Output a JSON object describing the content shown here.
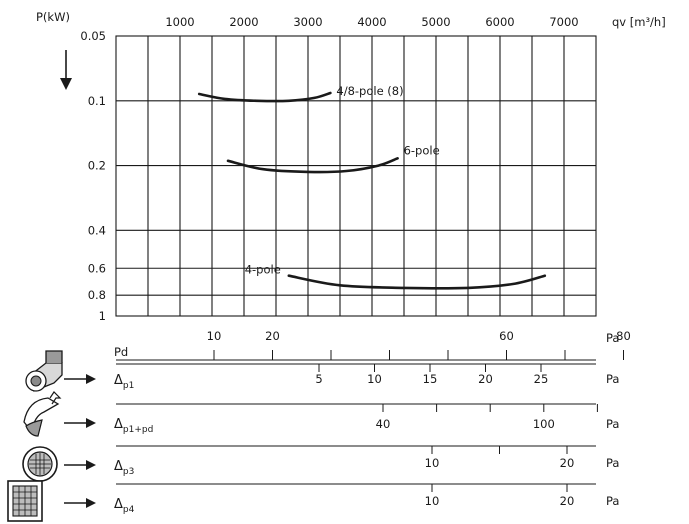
{
  "chart_data": {
    "type": "line",
    "x_axis": {
      "label": "qv [m³/h]",
      "range": [
        0,
        7500
      ],
      "ticks": [
        1000,
        2000,
        3000,
        4000,
        5000,
        6000,
        7000
      ],
      "position": "top"
    },
    "y_axis": {
      "label": "P(kW)",
      "scale": "log",
      "inverted": true,
      "range": [
        0.05,
        1
      ],
      "ticks": [
        {
          "value": 0.05,
          "label": "0.05"
        },
        {
          "value": 0.1,
          "label": "0.1"
        },
        {
          "value": 0.2,
          "label": "0.2"
        },
        {
          "value": 0.4,
          "label": "0.4"
        },
        {
          "value": 0.6,
          "label": "0.6"
        },
        {
          "value": 0.8,
          "label": "0.8"
        },
        {
          "value": 1,
          "label": "1"
        }
      ]
    },
    "grid": true,
    "series": [
      {
        "name": "4/8-pole (8)",
        "x": [
          1300,
          1700,
          2200,
          2700,
          3100,
          3350
        ],
        "y": [
          0.093,
          0.098,
          0.1,
          0.1,
          0.097,
          0.092
        ]
      },
      {
        "name": "6-pole",
        "x": [
          1750,
          2300,
          3000,
          3600,
          4100,
          4400
        ],
        "y": [
          0.19,
          0.208,
          0.214,
          0.212,
          0.2,
          0.185
        ]
      },
      {
        "name": "4-pole",
        "x": [
          2700,
          3500,
          4500,
          5500,
          6200,
          6700
        ],
        "y": [
          0.65,
          0.72,
          0.74,
          0.74,
          0.71,
          0.65
        ]
      }
    ],
    "pressure_scales": [
      {
        "label": "Pd",
        "sub": "",
        "unit": "Pa",
        "ticks_above": true,
        "ticks": [
          {
            "value": 10,
            "label": "10"
          },
          {
            "value": 20,
            "label": "20"
          },
          {
            "value": 30,
            "label": ""
          },
          {
            "value": 40,
            "label": ""
          },
          {
            "value": 50,
            "label": ""
          },
          {
            "value": 60,
            "label": "60"
          },
          {
            "value": 70,
            "label": ""
          },
          {
            "value": 80,
            "label": "80"
          }
        ]
      },
      {
        "label": "Δ",
        "sub": "p1",
        "unit": "Pa",
        "ticks_above": false,
        "ticks": [
          {
            "value": 5,
            "label": "5"
          },
          {
            "value": 10,
            "label": "10"
          },
          {
            "value": 15,
            "label": "15"
          },
          {
            "value": 20,
            "label": "20"
          },
          {
            "value": 25,
            "label": "25"
          }
        ]
      },
      {
        "label": "Δ",
        "sub": "p1+pd",
        "unit": "Pa",
        "ticks_above": false,
        "ticks": [
          {
            "value": 40,
            "label": "40"
          },
          {
            "value": 60,
            "label": ""
          },
          {
            "value": 80,
            "label": ""
          },
          {
            "value": 100,
            "label": "100"
          },
          {
            "value": 120,
            "label": ""
          }
        ]
      },
      {
        "label": "Δ",
        "sub": "p3",
        "unit": "Pa",
        "ticks_above": false,
        "ticks": [
          {
            "value": 10,
            "label": "10"
          },
          {
            "value": 15,
            "label": ""
          },
          {
            "value": 20,
            "label": "20"
          }
        ]
      },
      {
        "label": "Δ",
        "sub": "p4",
        "unit": "Pa",
        "ticks_above": false,
        "ticks": [
          {
            "value": 10,
            "label": "10"
          },
          {
            "value": 20,
            "label": "20"
          }
        ]
      }
    ],
    "icons": [
      "centrifugal-inlet-icon",
      "centrifugal-outlet-icon",
      "round-filter-icon",
      "square-filter-icon"
    ]
  }
}
